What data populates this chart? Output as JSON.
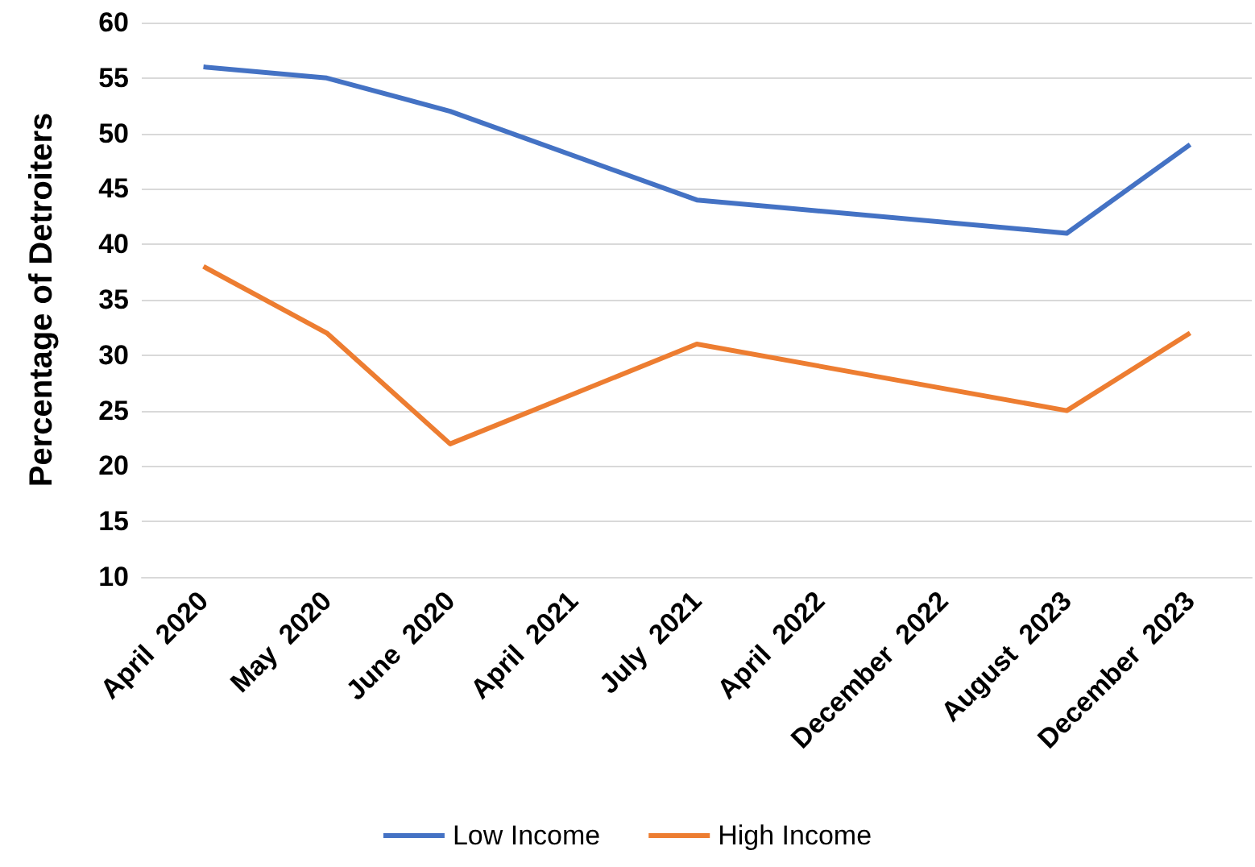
{
  "chart_data": {
    "type": "line",
    "ylabel": "Percentage of Detroiters",
    "categories": [
      "April  2020",
      "May  2020",
      "June  2020",
      "April  2021",
      "July  2021",
      "April  2022",
      "December  2022",
      "August  2023",
      "December  2023"
    ],
    "series": [
      {
        "name": "Low Income",
        "color": "#4472c4",
        "values": [
          56,
          55,
          52,
          null,
          44,
          null,
          null,
          41,
          49
        ]
      },
      {
        "name": "High Income",
        "color": "#ed7d31",
        "values": [
          38,
          32,
          22,
          null,
          31,
          null,
          null,
          25,
          32
        ]
      }
    ],
    "ylim": [
      10,
      60
    ],
    "yticks": [
      10,
      15,
      20,
      25,
      30,
      35,
      40,
      45,
      50,
      55,
      60
    ],
    "grid": "y",
    "legend": "bottom",
    "marker": "none",
    "line_style": "solid"
  }
}
